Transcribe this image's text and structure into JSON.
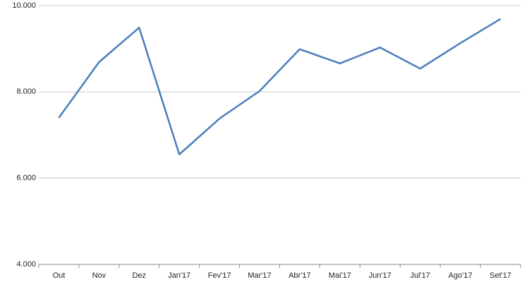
{
  "chart_data": {
    "type": "line",
    "categories": [
      "Out",
      "Nov",
      "Dez",
      "Jan'17",
      "Fev'17",
      "Mar'17",
      "Abr'17",
      "Mai'17",
      "Jun'17",
      "Jul'17",
      "Ago'17",
      "Set'17"
    ],
    "values": [
      7400,
      8690,
      9490,
      6550,
      7380,
      8020,
      8990,
      8660,
      9030,
      8540,
      9130,
      9690
    ],
    "color": "#4a7ebb",
    "ylim": [
      4000,
      10000
    ],
    "yticks": [
      {
        "value": 4000,
        "label": "4.000"
      },
      {
        "value": 6000,
        "label": "6.000"
      },
      {
        "value": 8000,
        "label": "8.000"
      },
      {
        "value": 10000,
        "label": "10.000"
      }
    ],
    "grid": true
  }
}
